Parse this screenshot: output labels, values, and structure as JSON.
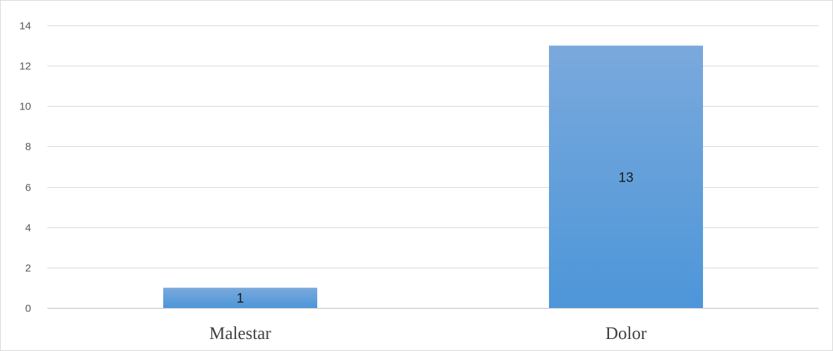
{
  "chart_data": {
    "type": "bar",
    "title": "",
    "xlabel": "",
    "ylabel": "",
    "categories": [
      "Malestar",
      "Dolor"
    ],
    "values": [
      1,
      13
    ],
    "ylim": [
      0,
      14
    ],
    "yticks": [
      0,
      2,
      4,
      6,
      8,
      10,
      12,
      14
    ],
    "yticks_text": [
      "0",
      "2",
      "4",
      "6",
      "8",
      "10",
      "12",
      "14"
    ],
    "data_labels": [
      "1",
      "13"
    ],
    "grid": true,
    "legend": "none",
    "colors": {
      "bar_top": "#7aa9dc",
      "bar_bottom": "#4d96d9",
      "grid": "#d9d9d9"
    }
  }
}
